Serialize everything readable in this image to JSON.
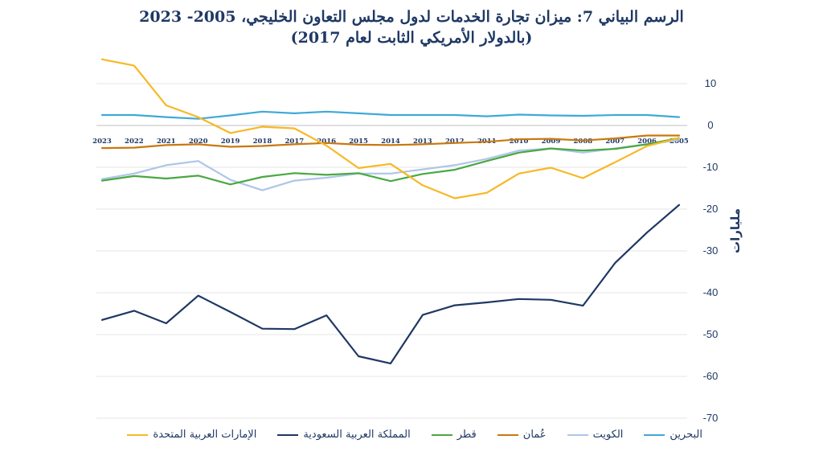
{
  "chart_data": {
    "type": "line",
    "title": "الرسم البياني 7: ميزان تجارة الخدمات لدول مجلس التعاون الخليجي، 2005- 2023",
    "subtitle": "(بالدولار الأمريكي الثابت لعام 2017)",
    "ylabel": "مليارات",
    "xlabel": "",
    "ylim": [
      -70,
      10
    ],
    "yticks": [
      "10",
      "0",
      "-10",
      "-20",
      "-30",
      "-40",
      "-50",
      "-60",
      "-70"
    ],
    "ytick_values": [
      10,
      0,
      -10,
      -20,
      -30,
      -40,
      -50,
      -60,
      -70
    ],
    "categories": [
      "2023",
      "2022",
      "2021",
      "2020",
      "2019",
      "2018",
      "2017",
      "2016",
      "2015",
      "2014",
      "2013",
      "2012",
      "2011",
      "2010",
      "2009",
      "2008",
      "2007",
      "2006",
      "2005"
    ],
    "x_axis_at": 0,
    "legend_position": "bottom",
    "series": [
      {
        "name": "البحرين",
        "color": "#3fa9d8",
        "values": [
          2.5,
          2.5,
          2.0,
          1.6,
          2.4,
          3.3,
          2.9,
          3.3,
          2.9,
          2.5,
          2.5,
          2.5,
          2.2,
          2.6,
          2.4,
          2.3,
          2.5,
          2.5,
          2.0
        ]
      },
      {
        "name": "الكويت",
        "color": "#aec6e8",
        "values": [
          -12.8,
          -11.5,
          -9.5,
          -8.5,
          -13.0,
          -15.5,
          -13.2,
          -12.5,
          -11.5,
          -11.5,
          -10.5,
          -9.5,
          -8.0,
          -6.0,
          -5.5,
          -6.5,
          -5.5,
          -4.5,
          -3.5
        ]
      },
      {
        "name": "عُمان",
        "color": "#c9780f",
        "values": [
          -5.4,
          -5.3,
          -4.7,
          -4.5,
          -5.1,
          -4.9,
          -4.5,
          -4.2,
          -4.6,
          -4.7,
          -4.5,
          -4.2,
          -3.9,
          -3.3,
          -3.2,
          -3.6,
          -3.1,
          -2.4,
          -2.4
        ]
      },
      {
        "name": "قطر",
        "color": "#4aa842",
        "values": [
          -13.2,
          -12.1,
          -12.7,
          -12.0,
          -14.1,
          -12.3,
          -11.4,
          -11.8,
          -11.4,
          -13.3,
          -11.6,
          -10.6,
          -8.5,
          -6.5,
          -5.5,
          -6.0,
          -5.6,
          -4.5,
          -3.0
        ]
      },
      {
        "name": "المملكة العربية السعودية",
        "color": "#1f3864",
        "values": [
          -46.5,
          -44.3,
          -47.3,
          -40.7,
          -44.6,
          -48.6,
          -48.7,
          -45.4,
          -55.2,
          -56.9,
          -45.3,
          -43.0,
          -42.3,
          -41.5,
          -41.7,
          -43.1,
          -32.9,
          -25.6,
          -19.0
        ]
      },
      {
        "name": "الإمارات العربية المتحدة",
        "color": "#f7b824",
        "values": [
          15.8,
          14.3,
          4.8,
          2.0,
          -1.8,
          -0.3,
          -0.7,
          -4.8,
          -10.2,
          -9.2,
          -14.3,
          -17.4,
          -16.1,
          -11.5,
          -10.1,
          -12.6,
          -8.8,
          -4.9,
          -3.0
        ]
      }
    ]
  }
}
